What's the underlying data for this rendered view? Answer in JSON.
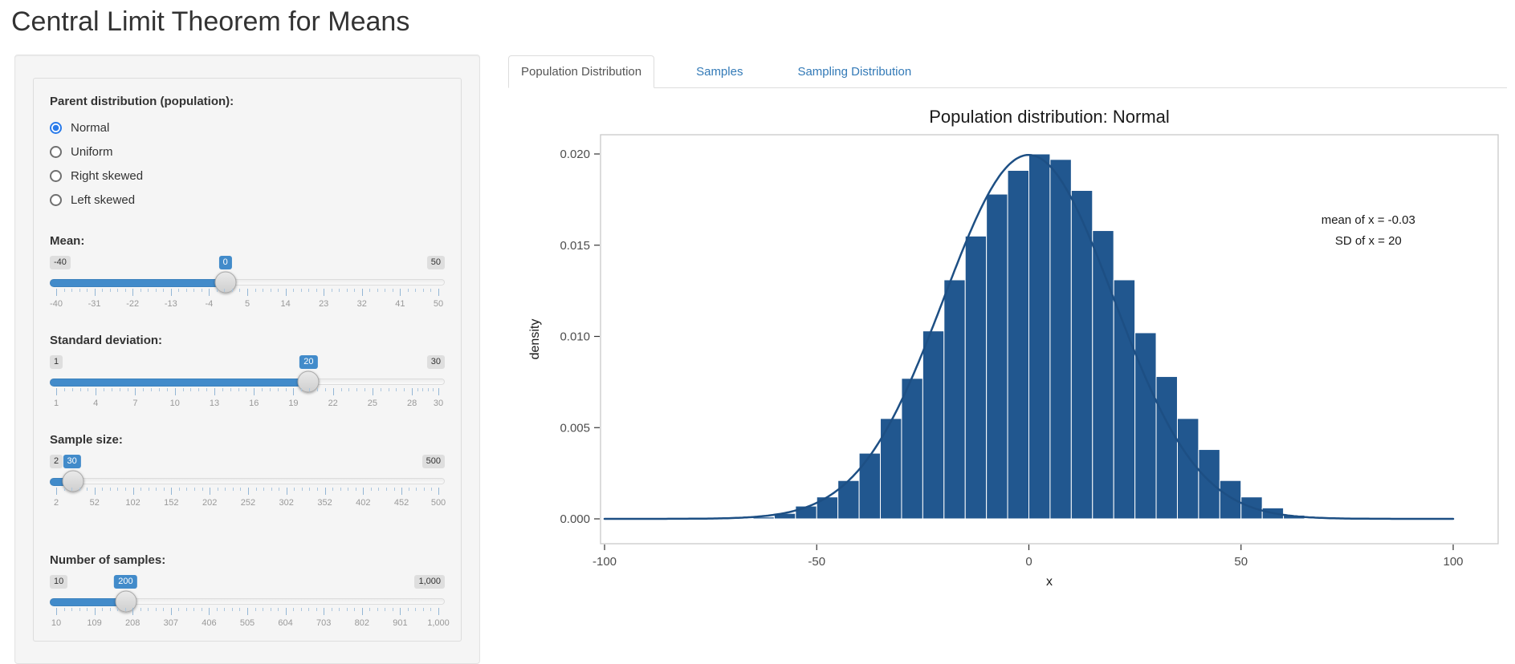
{
  "page": {
    "title": "Central Limit Theorem for Means"
  },
  "sidebar": {
    "radio_group": {
      "label": "Parent distribution (population):",
      "options": [
        {
          "label": "Normal",
          "selected": true
        },
        {
          "label": "Uniform",
          "selected": false
        },
        {
          "label": "Right skewed",
          "selected": false
        },
        {
          "label": "Left skewed",
          "selected": false
        }
      ]
    },
    "sliders": [
      {
        "id": "mean",
        "label": "Mean:",
        "min": -40,
        "max": 50,
        "value": 0,
        "min_label": "-40",
        "max_label": "50",
        "value_label": "0",
        "grid_values": [
          -40,
          -31,
          -22,
          -13,
          -4,
          5,
          14,
          23,
          32,
          41,
          50
        ],
        "grid_labels": [
          "-40",
          "-31",
          "-22",
          "-13",
          "-4",
          "5",
          "14",
          "23",
          "32",
          "41",
          "50"
        ]
      },
      {
        "id": "sd",
        "label": "Standard deviation:",
        "min": 1,
        "max": 30,
        "value": 20,
        "min_label": "1",
        "max_label": "30",
        "value_label": "20",
        "grid_values": [
          1,
          4,
          7,
          10,
          13,
          16,
          19,
          22,
          25,
          28,
          30
        ],
        "grid_labels": [
          "1",
          "4",
          "7",
          "10",
          "13",
          "16",
          "19",
          "22",
          "25",
          "28",
          "30"
        ]
      },
      {
        "id": "n",
        "label": "Sample size:",
        "min": 2,
        "max": 500,
        "value": 30,
        "min_label": "2",
        "max_label": "500",
        "value_label": "30",
        "grid_values": [
          2,
          52,
          102,
          152,
          202,
          252,
          302,
          352,
          402,
          452,
          500
        ],
        "grid_labels": [
          "2",
          "52",
          "102",
          "152",
          "202",
          "252",
          "302",
          "352",
          "402",
          "452",
          "500"
        ]
      },
      {
        "id": "k",
        "label": "Number of samples:",
        "min": 10,
        "max": 1000,
        "value": 200,
        "min_label": "10",
        "max_label": "1,000",
        "value_label": "200",
        "grid_values": [
          10,
          109,
          208,
          307,
          406,
          505,
          604,
          703,
          802,
          901,
          1000
        ],
        "grid_labels": [
          "10",
          "109",
          "208",
          "307",
          "406",
          "505",
          "604",
          "703",
          "802",
          "901",
          "1,000"
        ]
      }
    ]
  },
  "tabs": [
    {
      "label": "Population Distribution",
      "active": true
    },
    {
      "label": "Samples",
      "active": false
    },
    {
      "label": "Sampling Distribution",
      "active": false
    }
  ],
  "chart_data": {
    "type": "histogram+density",
    "title": "Population distribution: Normal",
    "xlabel": "x",
    "ylabel": "density",
    "xlim": [
      -100,
      100
    ],
    "ylim": [
      0,
      0.021
    ],
    "grid": "off",
    "x_ticks": [
      {
        "value": -100,
        "label": "-100"
      },
      {
        "value": -50,
        "label": "-50"
      },
      {
        "value": 0,
        "label": "0"
      },
      {
        "value": 50,
        "label": "50"
      },
      {
        "value": 100,
        "label": "100"
      }
    ],
    "y_ticks": [
      {
        "value": 0.0,
        "label": "0.000"
      },
      {
        "value": 0.005,
        "label": "0.005"
      },
      {
        "value": 0.01,
        "label": "0.010"
      },
      {
        "value": 0.015,
        "label": "0.015"
      },
      {
        "value": 0.02,
        "label": "0.020"
      }
    ],
    "annotation": {
      "lines": [
        "mean of x = -0.03",
        "SD of x = 20"
      ],
      "x": 80,
      "y": 0.0163
    },
    "bin_width": 5,
    "bars": [
      {
        "x": -62.5,
        "density": 0.0001
      },
      {
        "x": -57.5,
        "density": 0.0003
      },
      {
        "x": -52.5,
        "density": 0.0007
      },
      {
        "x": -47.5,
        "density": 0.0012
      },
      {
        "x": -42.5,
        "density": 0.0021
      },
      {
        "x": -37.5,
        "density": 0.0036
      },
      {
        "x": -32.5,
        "density": 0.0055
      },
      {
        "x": -27.5,
        "density": 0.0077
      },
      {
        "x": -22.5,
        "density": 0.0103
      },
      {
        "x": -17.5,
        "density": 0.0131
      },
      {
        "x": -12.5,
        "density": 0.0155
      },
      {
        "x": -7.5,
        "density": 0.0178
      },
      {
        "x": -2.5,
        "density": 0.0191
      },
      {
        "x": 2.5,
        "density": 0.02
      },
      {
        "x": 7.5,
        "density": 0.0197
      },
      {
        "x": 12.5,
        "density": 0.018
      },
      {
        "x": 17.5,
        "density": 0.0158
      },
      {
        "x": 22.5,
        "density": 0.0131
      },
      {
        "x": 27.5,
        "density": 0.0102
      },
      {
        "x": 32.5,
        "density": 0.0078
      },
      {
        "x": 37.5,
        "density": 0.0055
      },
      {
        "x": 42.5,
        "density": 0.0038
      },
      {
        "x": 47.5,
        "density": 0.0021
      },
      {
        "x": 52.5,
        "density": 0.0012
      },
      {
        "x": 57.5,
        "density": 0.0006
      },
      {
        "x": 62.5,
        "density": 0.0002
      }
    ],
    "curve": {
      "distribution": "normal",
      "mean": -0.03,
      "sd": 20
    },
    "colors": {
      "bar_fill": "#21578f",
      "bar_border": "#ffffff",
      "curve": "#1d4f84",
      "panel_border": "#c9c9c9",
      "tick_text": "#4d4d4d"
    }
  },
  "theme": {
    "accent": "#428bca",
    "link": "#337ab7",
    "radio_accent": "#2a7bea"
  }
}
